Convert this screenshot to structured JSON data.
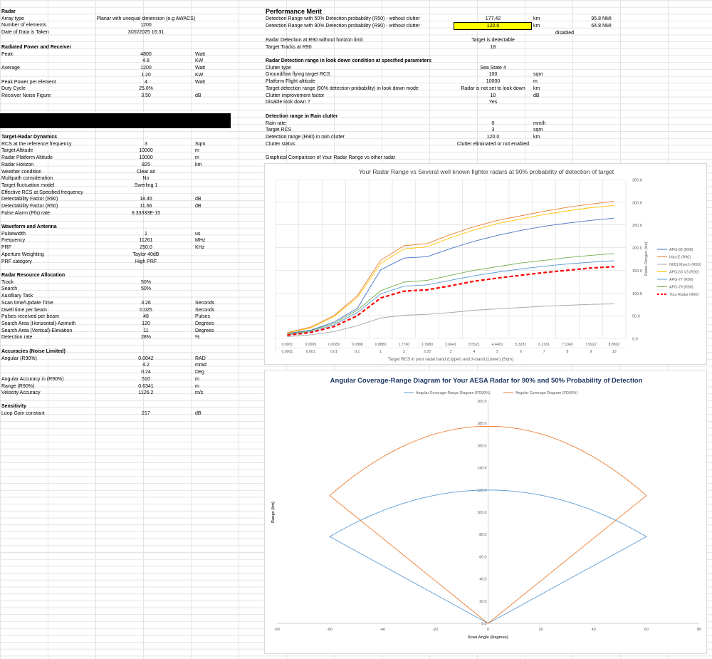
{
  "left": {
    "radar": {
      "title": "Radar",
      "rows": [
        {
          "label": "Array type",
          "value": "Planar with unequal dimension (e.g AWACS)",
          "unit": ""
        },
        {
          "label": "Number of elements",
          "value": "1200",
          "unit": ""
        },
        {
          "label": "Date of Data is Taken",
          "value": "3/20/2025 16:31",
          "unit": ""
        }
      ]
    },
    "power": {
      "title": "Radiated Power and Receiver",
      "rows": [
        {
          "label": "Peak",
          "value": "4800",
          "unit": "Watt"
        },
        {
          "label": "",
          "value": "4.8",
          "unit": "KW"
        },
        {
          "label": "Average",
          "value": "1200",
          "unit": "Watt"
        },
        {
          "label": "",
          "value": "1.20",
          "unit": "KW"
        },
        {
          "label": "Peak Power per element",
          "value": "4",
          "unit": "Watt"
        },
        {
          "label": "Duty Cycle",
          "value": "25.0%",
          "unit": ""
        },
        {
          "label": "Receiver Noise Figure",
          "value": "3.50",
          "unit": "dB"
        }
      ]
    },
    "target": {
      "title": "Target-Radar Dynamics",
      "rows": [
        {
          "label": "RCS at the reference frequency",
          "value": "3",
          "unit": "Sqm"
        },
        {
          "label": "Target Altitude",
          "value": "10000",
          "unit": "m"
        },
        {
          "label": "Radar Platform Altitude",
          "value": "10000",
          "unit": "m"
        },
        {
          "label": "Radar Horizon",
          "value": "825",
          "unit": "km"
        },
        {
          "label": "Weather condition",
          "value": "Clear air",
          "unit": ""
        },
        {
          "label": "Multipath consideration",
          "value": "No",
          "unit": ""
        },
        {
          "label": "Target fluctuation model",
          "value": "Swerling 1",
          "unit": ""
        },
        {
          "label": "Effective RCS at Specified frequency",
          "value": "",
          "unit": ""
        },
        {
          "label": "Detectability Factor (R90)",
          "value": "18.45",
          "unit": "dB"
        },
        {
          "label": "Detectability Factor (R50)",
          "value": "11.66",
          "unit": "dB"
        },
        {
          "label": "False Alarm (Pfa) rate",
          "value": "8.33333E-15",
          "unit": ""
        }
      ]
    },
    "waveform": {
      "title": "Waveform and Antenna",
      "rows": [
        {
          "label": "Pulsewidth",
          "value": "1",
          "unit": "us"
        },
        {
          "label": "Frequency",
          "value": "11261",
          "unit": "MHz"
        },
        {
          "label": "PRF",
          "value": "250.0",
          "unit": "KHz"
        },
        {
          "label": "Aperture Weighting",
          "value": "Taylor 40dB",
          "unit": ""
        },
        {
          "label": "PRF category",
          "value": "High PRF",
          "unit": ""
        }
      ]
    },
    "resource": {
      "title": "Radar Resource Allocation",
      "rows": [
        {
          "label": "Track",
          "value": "50%",
          "unit": ""
        },
        {
          "label": "Search",
          "value": "50%",
          "unit": ""
        },
        {
          "label": "Auxilliary Task",
          "value": "",
          "unit": ""
        },
        {
          "label": "Scan time/Update Time",
          "value": "3.26",
          "unit": "Seconds"
        },
        {
          "label": "Dwell time per beam",
          "value": "0.025",
          "unit": "Seconds"
        },
        {
          "label": "Pulses received per beam",
          "value": "48",
          "unit": "Pulses"
        },
        {
          "label": "Search Area (Horizontal)-Azimuth",
          "value": "120",
          "unit": "Degrees"
        },
        {
          "label": "Search Area (Vertical)-Elevation",
          "value": "11",
          "unit": "Degrees"
        },
        {
          "label": "Detection rate",
          "value": "28%",
          "unit": "%"
        }
      ]
    },
    "accuracy": {
      "title": "Accuracies (Noise Limited)",
      "rows": [
        {
          "label": "Angular (R90%)",
          "value": "0.0042",
          "unit": "RAD"
        },
        {
          "label": "",
          "value": "4.2",
          "unit": "mrad"
        },
        {
          "label": "",
          "value": "0.24",
          "unit": "Deg"
        },
        {
          "label": "Angular Accuracy in (R90%)",
          "value": "510",
          "unit": "m"
        },
        {
          "label": "Range (R90%)",
          "value": "0.6341",
          "unit": "m"
        },
        {
          "label": "Velocity Accuracy",
          "value": "1126.2",
          "unit": "m/s"
        }
      ]
    },
    "sensitivity": {
      "title": "Sensitivity",
      "rows": [
        {
          "label": "Loop Gain constant",
          "value": "217",
          "unit": "dB"
        }
      ]
    }
  },
  "right": {
    "merit": {
      "title": "Performance Merit",
      "rows": [
        {
          "label": "Detection Range with 50% Detection probability (R50) - without clutter",
          "value": "177.42",
          "unit": "km",
          "extra": "95.8",
          "extra_unit": "NMI"
        },
        {
          "label": "Detection Range with 90% Detection probability (R90) - without clutter",
          "value": "120.0",
          "unit": "km",
          "extra": "64.8",
          "extra_unit": "NMI"
        }
      ],
      "disabled": "disabled",
      "rows2": [
        {
          "label": "Radar Detection at R90 without horizon limit",
          "value": "Target is detectable",
          "unit": ""
        },
        {
          "label": "Target Tracks at R90",
          "value": "18",
          "unit": ""
        }
      ]
    },
    "lookdown": {
      "title": "Radar Detection range in look down condition at specified parameters",
      "rows": [
        {
          "label": "Clutter type",
          "value": "Sea State 4",
          "unit": ""
        },
        {
          "label": "Ground/low flying target RCS",
          "value": "100",
          "unit": "sqm"
        },
        {
          "label": "Platform Flight altitude",
          "value": "10000",
          "unit": "m"
        },
        {
          "label": "Target detection range (90% detection probability) in look down mode",
          "value": "Radar is not set to look down",
          "unit": "km"
        },
        {
          "label": "Clutter improvement factor",
          "value": "10",
          "unit": "dB"
        },
        {
          "label": "Disable look down ?",
          "value": "Yes",
          "unit": ""
        }
      ]
    },
    "rain": {
      "title": "Detection range in Rain clutter",
      "rows": [
        {
          "label": "Rain rate",
          "value": "0",
          "unit": "mm/h"
        },
        {
          "label": "Target RCS",
          "value": "3",
          "unit": "sqm"
        },
        {
          "label": "Detection range (R90) in rain clutter",
          "value": "120.0",
          "unit": "km"
        },
        {
          "label": "Clutter status",
          "value": "Clutter eliminated or not enabled",
          "unit": ""
        }
      ]
    },
    "graph_caption": "Graphical Comparison of Your Radar Range vs other  radar"
  },
  "chart_data": [
    {
      "type": "line",
      "title": "Your Radar Range vs Several well known fighter radars at 90% probability of detection of target",
      "xlabel": "Target RCS in your radar band (Upper) and X-band (Lower)  (Sqm)",
      "ylabel": "Radar Ranges (km)",
      "x_upper": [
        "0.0001",
        "0.0009",
        "0.0089",
        "0.0888",
        "0.8880",
        "1.7760",
        "1.9980",
        "2.6641",
        "3.5521",
        "4.4401",
        "5.3281",
        "6.2161",
        "7.1042",
        "7.9922",
        "8.8802"
      ],
      "x_lower": [
        "0.0001",
        "0.001",
        "0.01",
        "0.1",
        "1",
        "2",
        "2.25",
        "3",
        "4",
        "5",
        "6",
        "7",
        "8",
        "9",
        "10"
      ],
      "ylim": [
        0,
        350
      ],
      "yticks": [
        "0.0",
        "50.0",
        "100.0",
        "150.0",
        "200.0",
        "250.0",
        "300.0",
        "350.0"
      ],
      "legend_position": "right",
      "series": [
        {
          "name": "APG-83 (R90)",
          "color": "#4472c4",
          "dash": false,
          "values": [
            11,
            18,
            36,
            66,
            151,
            177,
            180,
            198,
            214,
            227,
            238,
            247,
            254,
            260,
            265
          ]
        },
        {
          "name": "Irbis-E (R90)",
          "color": "#ed7d31",
          "dash": false,
          "values": [
            13,
            25,
            50,
            94,
            172,
            204,
            209,
            229,
            246,
            260,
            270,
            280,
            289,
            296,
            302
          ]
        },
        {
          "name": "N001 Myech (R90)",
          "color": "#a5a5a5",
          "dash": false,
          "values": [
            4,
            8,
            15,
            28,
            45,
            51,
            53,
            57,
            62,
            65,
            68,
            71,
            73,
            75,
            76
          ]
        },
        {
          "name": "APG-63 V3 (R90)",
          "color": "#ffc000",
          "dash": false,
          "values": [
            12,
            23,
            48,
            90,
            165,
            197,
            202,
            222,
            239,
            253,
            263,
            273,
            281,
            288,
            293
          ]
        },
        {
          "name": "APG-77 (R90)",
          "color": "#5b9bd5",
          "dash": false,
          "values": [
            8,
            15,
            30,
            57,
            98,
            115,
            118,
            128,
            138,
            146,
            153,
            159,
            164,
            168,
            171
          ]
        },
        {
          "name": "APG-79 (R90)",
          "color": "#70ad47",
          "dash": false,
          "values": [
            9,
            17,
            33,
            62,
            105,
            124,
            128,
            139,
            150,
            158,
            166,
            172,
            178,
            183,
            187
          ]
        },
        {
          "name": "Your Radar (R90)",
          "color": "#ff0000",
          "dash": true,
          "values": [
            7,
            13,
            26,
            50,
            89,
            104,
            107,
            116,
            126,
            133,
            139,
            145,
            150,
            155,
            158
          ]
        }
      ]
    },
    {
      "type": "line",
      "title": "Angular Coverage-Range Diagram for Your AESA Radar for 90% and 50% Probability  of Detection",
      "xlabel": "Scan Angle (Degrees)",
      "ylabel": "Range (km)",
      "xlim": [
        -80,
        80
      ],
      "ylim": [
        0,
        200
      ],
      "xticks": [
        "-80",
        "-60",
        "-40",
        "-20",
        "0",
        "20",
        "40",
        "60",
        "80"
      ],
      "yticks": [
        "0.0",
        "20.0",
        "40.0",
        "60.0",
        "80.0",
        "100.0",
        "120.0",
        "140.0",
        "160.0",
        "180.0",
        "200.0"
      ],
      "legend_position": "top",
      "series": [
        {
          "name": "Angular Coverage-Range Diagram (PD90%)",
          "color": "#5b9bd5",
          "peak": 120.0,
          "edge": 78
        },
        {
          "name": "Angular Coverage Diagram (PD50%)",
          "color": "#ed7d31",
          "peak": 177.4,
          "edge": 115
        }
      ]
    }
  ]
}
